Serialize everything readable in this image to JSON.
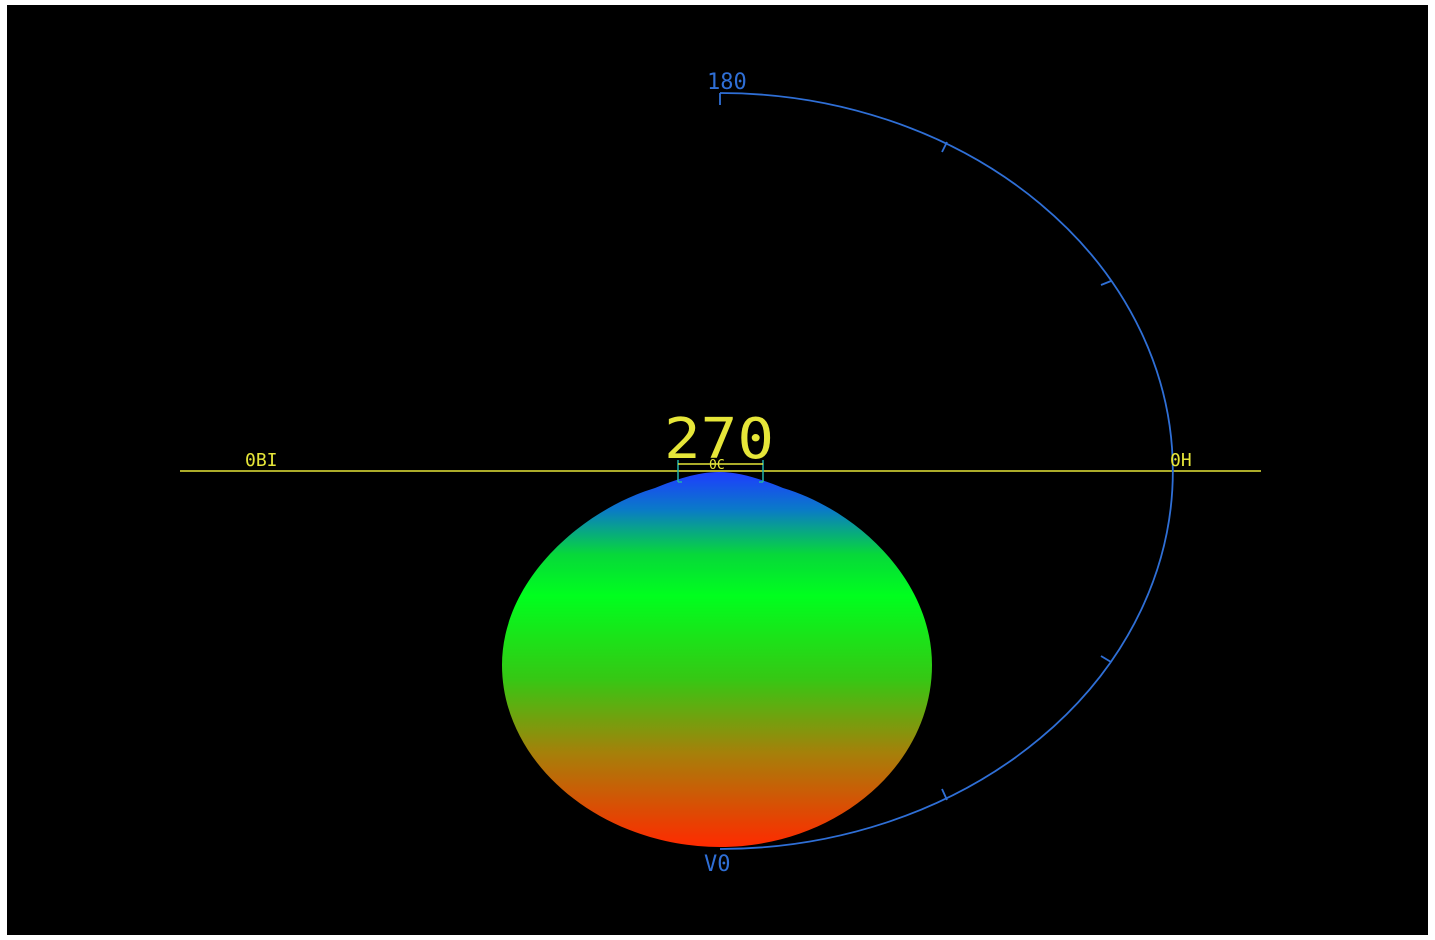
{
  "labels": {
    "angle_top": "180",
    "angle_center": "270",
    "left_axis": "0BI",
    "right_axis": "0H",
    "bottom_marker": "V0",
    "center_small": "0C"
  },
  "colors": {
    "background": "#000000",
    "axis_line": "#e6e639",
    "arc": "#2f6fd6",
    "bottom_label": "#2f6fd6",
    "lobe_top": "#1e3cff",
    "lobe_mid": "#00ff1e",
    "lobe_bottom": "#ff2a00",
    "emitter": "#20b2aa"
  },
  "arc_ticks_deg": [
    30,
    60,
    120,
    150
  ]
}
